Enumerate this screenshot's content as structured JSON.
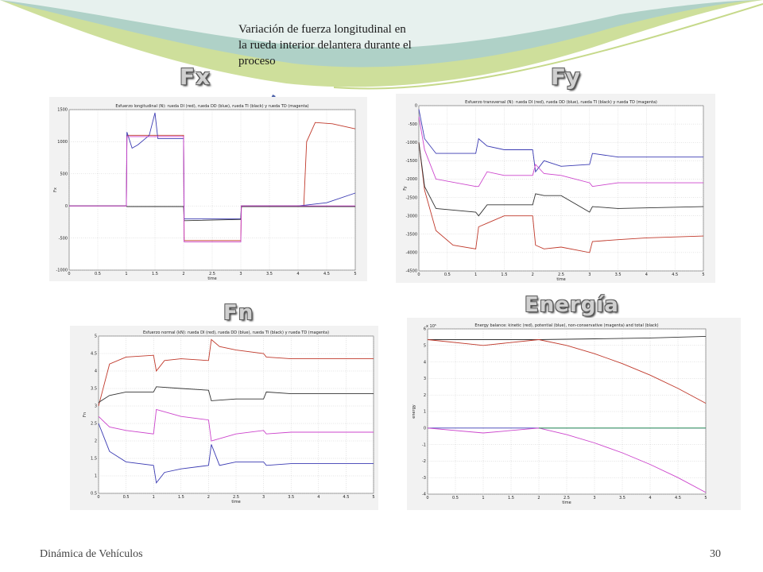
{
  "slide": {
    "footer_left": "Dinámica de Vehículos",
    "page_number": "30",
    "annotation": "Variación de fuerza longitudinal en la  rueda interior delantera  durante el proceso",
    "colors": {
      "wave_green": "#c6d98a",
      "wave_teal": "#a8cdd2",
      "arrow": "#4a5fa8"
    }
  },
  "headings": {
    "fx": "Fx",
    "fy": "Fy",
    "fn": "Fn",
    "energia": "Energía"
  },
  "chart_data": [
    {
      "id": "fx",
      "type": "line",
      "title": "Esfuerzo longitudinal (N): rueda DI (red), rueda DD (blue), rueda TI (black) y rueda TD (magenta)",
      "xlabel": "time",
      "ylabel": "Fx",
      "xlim": [
        0,
        5
      ],
      "ylim": [
        -1000,
        1500
      ],
      "xticks": [
        "0",
        "0.5",
        "1",
        "1.5",
        "2",
        "2.5",
        "3",
        "3.5",
        "4",
        "4.5",
        "5"
      ],
      "yticks": [
        "-1000",
        "-500",
        "0",
        "500",
        "1000",
        "1500"
      ],
      "grid": true,
      "series": [
        {
          "color": "#c0392b",
          "x": [
            0,
            1,
            1.01,
            1.5,
            2,
            2.01,
            3,
            3.01,
            4.1,
            4.15,
            4.3,
            4.6,
            5
          ],
          "y": [
            0,
            0,
            1100,
            1100,
            1100,
            -540,
            -540,
            0,
            0,
            1000,
            1300,
            1280,
            1200
          ]
        },
        {
          "color": "#3b3bb3",
          "x": [
            0,
            1,
            1.01,
            1.1,
            1.2,
            1.4,
            1.5,
            1.55,
            2,
            2.01,
            3,
            3.01,
            4,
            4.5,
            5
          ],
          "y": [
            0,
            0,
            1150,
            900,
            950,
            1100,
            1450,
            1050,
            1050,
            -200,
            -200,
            0,
            0,
            50,
            200
          ]
        },
        {
          "color": "#333333",
          "x": [
            0,
            1,
            1.01,
            2,
            2.01,
            3,
            3.01,
            5
          ],
          "y": [
            0,
            0,
            -10,
            -10,
            -230,
            -210,
            -10,
            -10
          ]
        },
        {
          "color": "#cc44cc",
          "x": [
            0,
            1,
            1.01,
            2,
            2.01,
            3,
            3.01,
            5
          ],
          "y": [
            0,
            0,
            1080,
            1080,
            -560,
            -560,
            0,
            0
          ]
        }
      ]
    },
    {
      "id": "fy",
      "type": "line",
      "title": "Esfuerzo transversal (N): rueda DI (red), rueda DD (blue), rueda TI (black) y rueda TD (magenta)",
      "xlabel": "time",
      "ylabel": "Fy",
      "xlim": [
        0,
        5
      ],
      "ylim": [
        -4500,
        0
      ],
      "xticks": [
        "0",
        "0.5",
        "1",
        "1.5",
        "2",
        "2.5",
        "3",
        "3.5",
        "4",
        "4.5",
        "5"
      ],
      "yticks": [
        "-4500",
        "-4000",
        "-3500",
        "-3000",
        "-2500",
        "-2000",
        "-1500",
        "-1000",
        "-500",
        "0"
      ],
      "grid": true,
      "series": [
        {
          "color": "#c0392b",
          "x": [
            0,
            0.1,
            0.3,
            0.6,
            1,
            1.05,
            1.2,
            1.5,
            2,
            2.05,
            2.2,
            2.5,
            3,
            3.05,
            3.5,
            4,
            5
          ],
          "y": [
            -1000,
            -2300,
            -3400,
            -3800,
            -3900,
            -3300,
            -3200,
            -3000,
            -3000,
            -3800,
            -3900,
            -3850,
            -4000,
            -3700,
            -3650,
            -3600,
            -3550
          ]
        },
        {
          "color": "#3b3bb3",
          "x": [
            0,
            0.1,
            0.3,
            1,
            1.05,
            1.2,
            1.5,
            2,
            2.05,
            2.2,
            2.5,
            3,
            3.05,
            3.5,
            5
          ],
          "y": [
            -100,
            -900,
            -1300,
            -1300,
            -900,
            -1100,
            -1200,
            -1200,
            -1800,
            -1500,
            -1650,
            -1600,
            -1300,
            -1400,
            -1400
          ]
        },
        {
          "color": "#333333",
          "x": [
            0,
            0.1,
            0.3,
            1,
            1.05,
            1.2,
            1.5,
            2,
            2.05,
            2.2,
            2.5,
            3,
            3.05,
            3.5,
            5
          ],
          "y": [
            -1000,
            -2200,
            -2800,
            -2900,
            -3000,
            -2700,
            -2700,
            -2700,
            -2400,
            -2450,
            -2450,
            -2900,
            -2750,
            -2800,
            -2750
          ]
        },
        {
          "color": "#cc44cc",
          "x": [
            0,
            0.1,
            0.3,
            1,
            1.05,
            1.2,
            1.5,
            2,
            2.05,
            2.2,
            2.5,
            3,
            3.05,
            3.5,
            5
          ],
          "y": [
            -300,
            -1200,
            -2000,
            -2200,
            -2200,
            -1800,
            -1900,
            -1900,
            -1600,
            -1850,
            -1900,
            -2100,
            -2200,
            -2100,
            -2100
          ]
        }
      ]
    },
    {
      "id": "fn",
      "type": "line",
      "title": "Esfuerzo normal (kN): rueda DI (red), rueda DD (blue), rueda TI (black) y rueda TD (magenta)",
      "xlabel": "time",
      "ylabel": "Fn",
      "xlim": [
        0,
        5
      ],
      "ylim": [
        0.5,
        5
      ],
      "xticks": [
        "0",
        "0.5",
        "1",
        "1.5",
        "2",
        "2.5",
        "3",
        "3.5",
        "4",
        "4.5",
        "5"
      ],
      "yticks": [
        "0.5",
        "1",
        "1.5",
        "2",
        "2.5",
        "3",
        "3.5",
        "4",
        "4.5",
        "5"
      ],
      "grid": true,
      "series": [
        {
          "color": "#c0392b",
          "x": [
            0,
            0.2,
            0.5,
            1,
            1.05,
            1.2,
            1.5,
            2,
            2.05,
            2.2,
            2.5,
            3,
            3.05,
            3.5,
            5
          ],
          "y": [
            3,
            4.2,
            4.4,
            4.45,
            4.0,
            4.3,
            4.35,
            4.3,
            4.9,
            4.7,
            4.6,
            4.5,
            4.4,
            4.35,
            4.35
          ]
        },
        {
          "color": "#3b3bb3",
          "x": [
            0,
            0.2,
            0.5,
            1,
            1.05,
            1.2,
            1.5,
            2,
            2.05,
            2.2,
            2.5,
            3,
            3.05,
            3.5,
            5
          ],
          "y": [
            2.5,
            1.7,
            1.4,
            1.3,
            0.8,
            1.1,
            1.2,
            1.3,
            1.9,
            1.3,
            1.4,
            1.4,
            1.3,
            1.35,
            1.35
          ]
        },
        {
          "color": "#333333",
          "x": [
            0,
            0.2,
            0.5,
            1,
            1.05,
            1.5,
            2,
            2.05,
            2.5,
            3,
            3.05,
            3.5,
            5
          ],
          "y": [
            3.1,
            3.3,
            3.4,
            3.4,
            3.55,
            3.5,
            3.45,
            3.15,
            3.2,
            3.2,
            3.4,
            3.35,
            3.35
          ]
        },
        {
          "color": "#cc44cc",
          "x": [
            0,
            0.2,
            0.5,
            1,
            1.05,
            1.5,
            2,
            2.05,
            2.5,
            3,
            3.05,
            3.5,
            5
          ],
          "y": [
            2.7,
            2.4,
            2.3,
            2.2,
            2.9,
            2.7,
            2.6,
            2.0,
            2.2,
            2.3,
            2.2,
            2.25,
            2.25
          ]
        }
      ]
    },
    {
      "id": "energia",
      "type": "line",
      "title": "Energy balance: kinetic (red), potential (blue), non-conservative (magenta) and total (black)",
      "xlabel": "time",
      "ylabel": "energy",
      "scale_label": "x 10⁵",
      "xlim": [
        0,
        5
      ],
      "ylim": [
        -4,
        6
      ],
      "xticks": [
        "0",
        "0.5",
        "1",
        "1.5",
        "2",
        "2.5",
        "3",
        "3.5",
        "4",
        "4.5",
        "5"
      ],
      "yticks": [
        "-4",
        "-3",
        "-2",
        "-1",
        "0",
        "1",
        "2",
        "3",
        "4",
        "5",
        "6"
      ],
      "grid": true,
      "series": [
        {
          "color": "#333333",
          "x": [
            0,
            1,
            2,
            3,
            4,
            5
          ],
          "y": [
            5.35,
            5.35,
            5.35,
            5.4,
            5.45,
            5.55
          ]
        },
        {
          "color": "#c0392b",
          "x": [
            0,
            1,
            2,
            2.5,
            3,
            3.5,
            4,
            4.5,
            5
          ],
          "y": [
            5.35,
            5.0,
            5.35,
            5.0,
            4.5,
            3.9,
            3.2,
            2.4,
            1.5
          ]
        },
        {
          "color": "#3b3bb3",
          "x": [
            0,
            1,
            2,
            5
          ],
          "y": [
            0,
            0,
            0,
            0
          ]
        },
        {
          "color": "#cc44cc",
          "x": [
            0,
            1,
            2,
            2.5,
            3,
            3.5,
            4,
            4.5,
            5
          ],
          "y": [
            0,
            -0.3,
            0,
            -0.4,
            -0.9,
            -1.5,
            -2.2,
            -3.0,
            -3.9
          ]
        },
        {
          "color": "#2a9d4a",
          "x": [
            2,
            5
          ],
          "y": [
            0,
            0
          ]
        }
      ]
    }
  ]
}
